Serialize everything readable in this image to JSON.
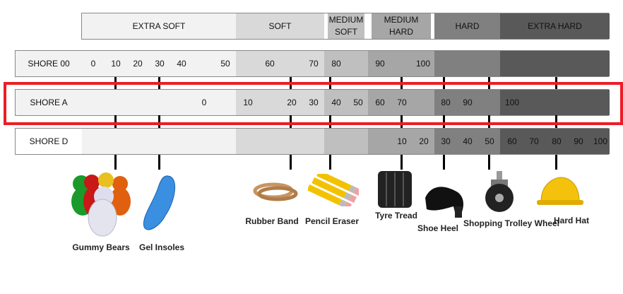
{
  "categories": [
    {
      "label": "EXTRA SOFT",
      "color": "#f2f2f2"
    },
    {
      "label": "SOFT",
      "color": "#d9d9d9"
    },
    {
      "label": "MEDIUM SOFT",
      "color": "#bfbfbf"
    },
    {
      "label": "MEDIUM HARD",
      "color": "#a6a6a6"
    },
    {
      "label": "HARD",
      "color": "#808080"
    },
    {
      "label": "EXTRA HARD",
      "color": "#595959"
    }
  ],
  "scales": [
    {
      "name": "SHORE 00",
      "values": [
        "0",
        "10",
        "20",
        "30",
        "40",
        "50",
        "60",
        "70",
        "80",
        "90",
        "100"
      ]
    },
    {
      "name": "SHORE A",
      "values": [
        "0",
        "10",
        "20",
        "30",
        "40",
        "50",
        "60",
        "70",
        "80",
        "90",
        "100"
      ],
      "highlighted": true
    },
    {
      "name": "SHORE D",
      "values": [
        "10",
        "20",
        "30",
        "40",
        "50",
        "60",
        "70",
        "80",
        "90",
        "100"
      ]
    }
  ],
  "highlight_color": "#ee1c25",
  "examples": [
    "Gummy Bears",
    "Gel Insoles",
    "Rubber Band",
    "Pencil Eraser",
    "Tyre Tread",
    "Shoe Heel",
    "Shopping Trolley Wheel",
    "Hard Hat"
  ]
}
